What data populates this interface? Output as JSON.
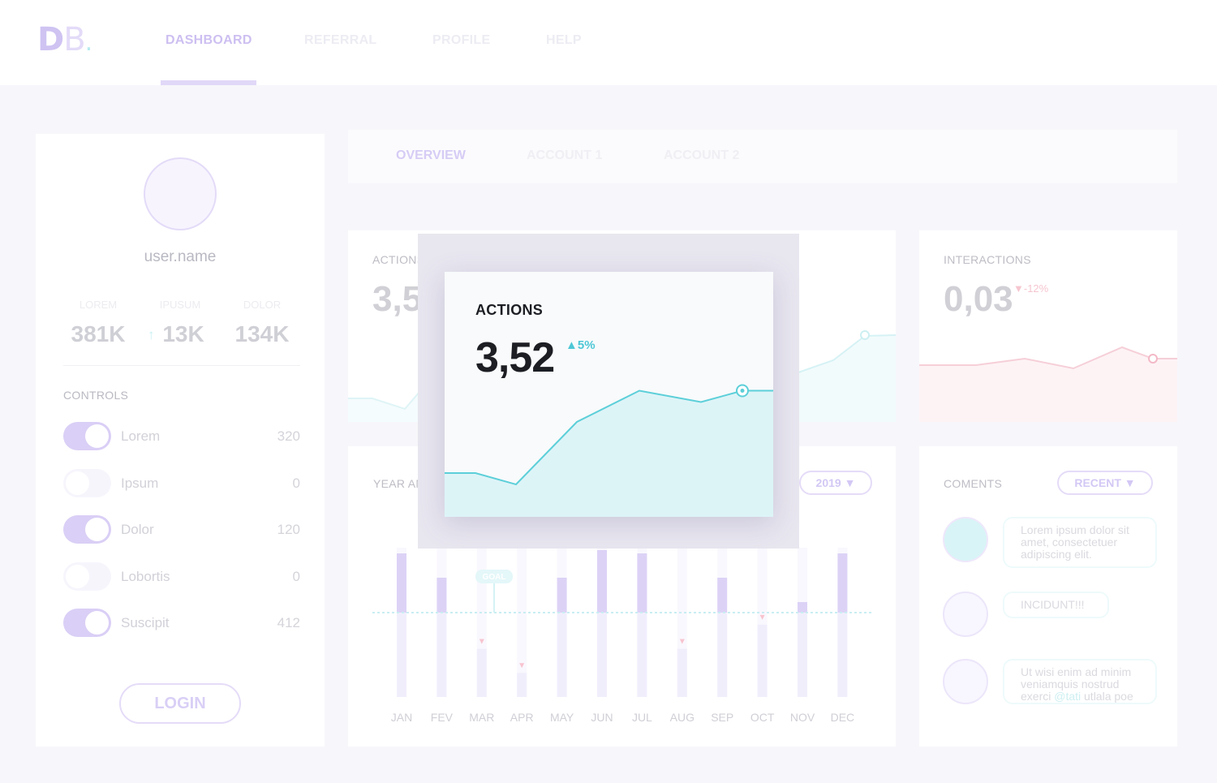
{
  "brand": {
    "letter1": "D",
    "letter2": "B",
    "dot": "."
  },
  "nav": {
    "items": [
      {
        "label": "DASHBOARD",
        "active": true
      },
      {
        "label": "REFERRAL",
        "active": false
      },
      {
        "label": "PROFILE",
        "active": false
      },
      {
        "label": "HELP",
        "active": false
      }
    ]
  },
  "profile": {
    "username": "user.name",
    "stats": [
      {
        "label": "LOREM",
        "value": "381K"
      },
      {
        "label": "IPUSUM",
        "value": "13K",
        "trend": "↑"
      },
      {
        "label": "DOLOR",
        "value": "134K"
      }
    ],
    "controls_title": "CONTROLS",
    "controls": [
      {
        "label": "Lorem",
        "count": "320",
        "on": true
      },
      {
        "label": "Ipsum",
        "count": "0",
        "on": false
      },
      {
        "label": "Dolor",
        "count": "120",
        "on": true
      },
      {
        "label": "Lobortis",
        "count": "0",
        "on": false
      },
      {
        "label": "Suscipit",
        "count": "412",
        "on": true
      }
    ],
    "login_label": "LOGIN"
  },
  "subtabs": [
    {
      "label": "OVERVIEW",
      "active": true
    },
    {
      "label": "ACCOUNT 1",
      "active": false
    },
    {
      "label": "ACCOUNT 2",
      "active": false
    }
  ],
  "actions_card": {
    "title": "ACTIONS",
    "value": "3,5"
  },
  "interactions_card": {
    "title": "INTERACTIONS",
    "value": "0,03",
    "delta": "▼-12%"
  },
  "year_card": {
    "title": "YEAR AN",
    "year_select": "2019 ▼",
    "goal_label": "GOAL"
  },
  "comments": {
    "title": "COMENTS",
    "filter": "RECENT ▼",
    "items": [
      {
        "line1": "Lorem ipsum dolor sit",
        "line2": "amet, consectetuer",
        "line3": "adipiscing elit."
      },
      {
        "line1": "INCIDUNT!!!"
      },
      {
        "line1": "Ut wisi enim ad minim",
        "line2": "veniamquis nostrud",
        "line3a": "exerci ",
        "line3b": "@tati",
        "line3c": " utlala poe"
      }
    ]
  },
  "modal": {
    "title": "ACTIONS",
    "value": "3,52",
    "delta": "▲5%",
    "chart_data": {
      "type": "area",
      "x": [
        1,
        2,
        3,
        4,
        5,
        6,
        7,
        8
      ],
      "values": [
        1.2,
        1.2,
        0.8,
        3.0,
        4.1,
        3.7,
        4.1,
        4.1
      ],
      "ylim": [
        0,
        5
      ],
      "color": "#5ccfd9"
    }
  },
  "chart_data": {
    "type": "bar",
    "categories": [
      "JAN",
      "FEV",
      "MAR",
      "APR",
      "MAY",
      "JUN",
      "JUL",
      "AUG",
      "SEP",
      "OCT",
      "NOV",
      "DEC"
    ],
    "values": [
      178,
      148,
      60,
      30,
      148,
      182,
      178,
      60,
      148,
      90,
      118,
      178
    ],
    "goal": 105,
    "ylim": [
      0,
      185
    ],
    "below_goal_markers": [
      "MAR",
      "APR",
      "AUG",
      "OCT"
    ]
  },
  "colors": {
    "accent": "#cdbff1",
    "teal": "#5ccfd9",
    "pink": "#f2a6b8"
  }
}
